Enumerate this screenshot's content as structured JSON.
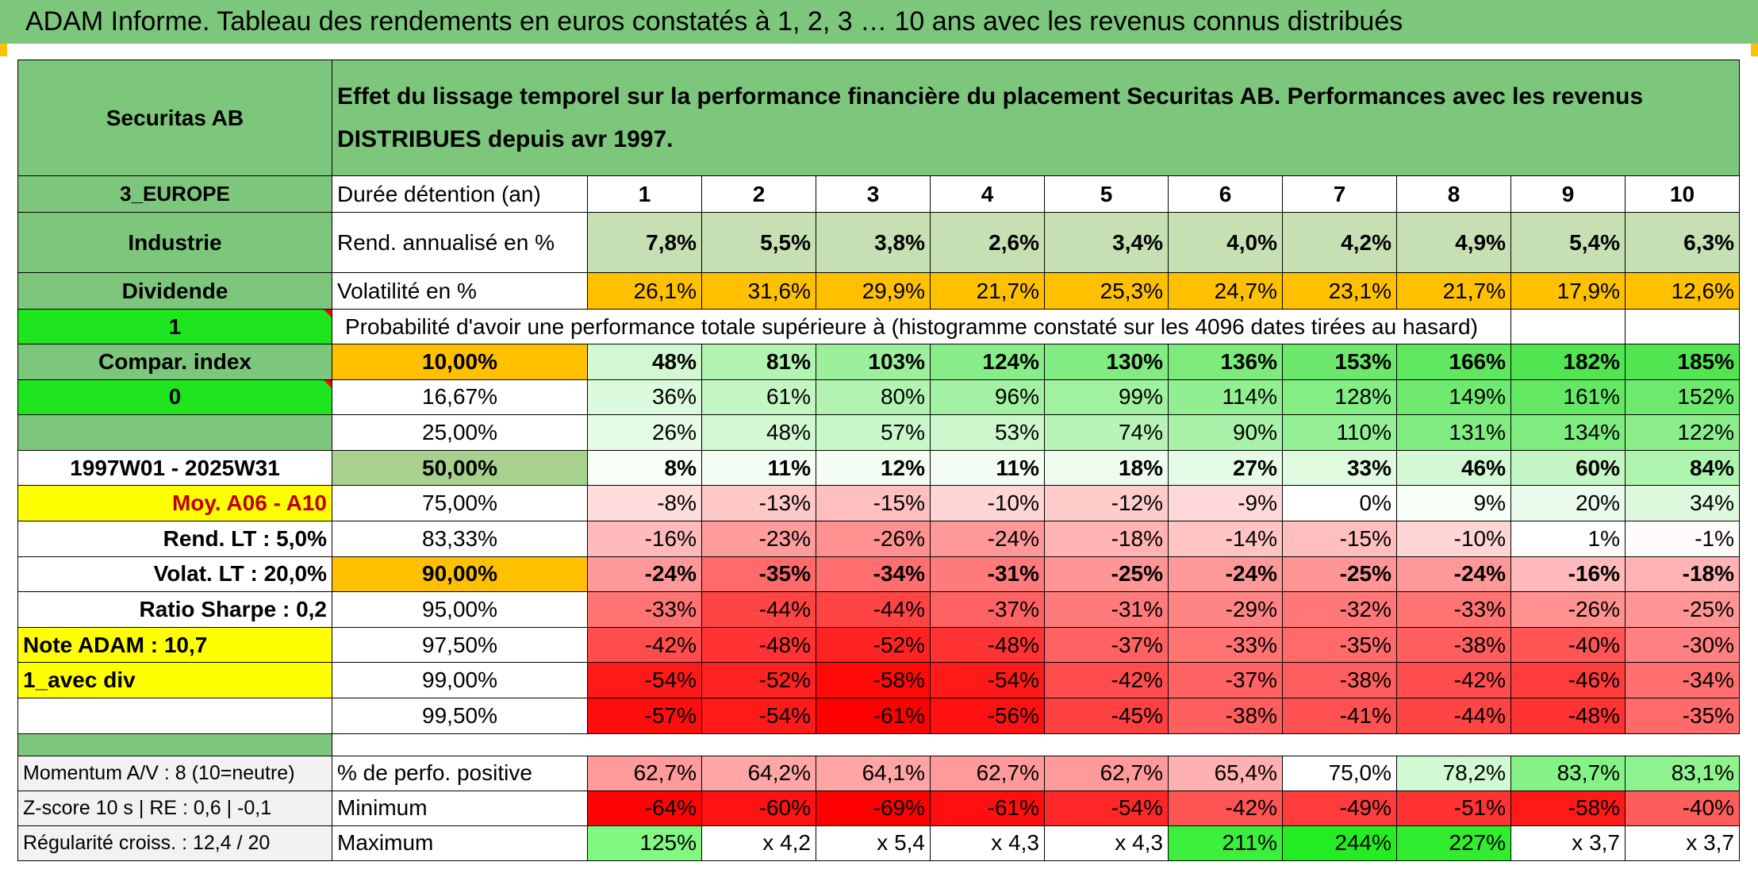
{
  "title": "ADAM Informe. Tableau des rendements en euros constatés à 1, 2, 3 … 10 ans avec les revenus connus distribués",
  "left_panel": {
    "name": "Securitas AB",
    "region": "3_EUROPE",
    "sector": "Industrie",
    "dividend_label": "Dividende",
    "value_1": "1",
    "compar_index": "Compar. index",
    "value_0": "0",
    "period": "1997W01 - 2025W31",
    "moy": "Moy. A06 - A10",
    "rend_lt": "Rend. LT :    5,0%",
    "volat_lt": "Volat. LT :    20,0%",
    "sharpe": "Ratio Sharpe :    0,2",
    "note": "Note ADAM : 10,7",
    "avec_div": "1_avec div",
    "momentum": "Momentum A/V : 8 (10=neutre)",
    "zscore": "Z-score 10 s | RE : 0,6 | -0,1",
    "regularite": "Régularité croiss. : 12,4 / 20"
  },
  "header_text": "Effet du lissage temporel sur la performance financière du placement Securitas AB. Performances avec les revenus DISTRIBUES depuis avr 1997.",
  "duration_label": "Durée détention (an)",
  "years": [
    "1",
    "2",
    "3",
    "4",
    "5",
    "6",
    "7",
    "8",
    "9",
    "10"
  ],
  "rend_label": "Rend. annualisé en %",
  "rend_values": [
    "7,8%",
    "5,5%",
    "3,8%",
    "2,6%",
    "3,4%",
    "4,0%",
    "4,2%",
    "4,9%",
    "5,4%",
    "6,3%"
  ],
  "vol_label": "Volatilité en %",
  "vol_values": [
    "26,1%",
    "31,6%",
    "29,9%",
    "21,7%",
    "25,3%",
    "24,7%",
    "23,1%",
    "21,7%",
    "17,9%",
    "12,6%"
  ],
  "prob_header": "Probabilité d'avoir une performance totale supérieure à (histogramme constaté sur les 4096 dates tirées au hasard)",
  "prob_rows": [
    {
      "threshold": "10,00%",
      "values": [
        "48%",
        "81%",
        "103%",
        "124%",
        "130%",
        "136%",
        "153%",
        "166%",
        "182%",
        "185%"
      ]
    },
    {
      "threshold": "16,67%",
      "values": [
        "36%",
        "61%",
        "80%",
        "96%",
        "99%",
        "114%",
        "128%",
        "149%",
        "161%",
        "152%"
      ]
    },
    {
      "threshold": "25,00%",
      "values": [
        "26%",
        "48%",
        "57%",
        "53%",
        "74%",
        "90%",
        "110%",
        "131%",
        "134%",
        "122%"
      ]
    },
    {
      "threshold": "50,00%",
      "values": [
        "8%",
        "11%",
        "12%",
        "11%",
        "18%",
        "27%",
        "33%",
        "46%",
        "60%",
        "84%"
      ]
    },
    {
      "threshold": "75,00%",
      "values": [
        "-8%",
        "-13%",
        "-15%",
        "-10%",
        "-12%",
        "-9%",
        "0%",
        "9%",
        "20%",
        "34%"
      ]
    },
    {
      "threshold": "83,33%",
      "values": [
        "-16%",
        "-23%",
        "-26%",
        "-24%",
        "-18%",
        "-14%",
        "-15%",
        "-10%",
        "1%",
        "-1%"
      ]
    },
    {
      "threshold": "90,00%",
      "values": [
        "-24%",
        "-35%",
        "-34%",
        "-31%",
        "-25%",
        "-24%",
        "-25%",
        "-24%",
        "-16%",
        "-18%"
      ]
    },
    {
      "threshold": "95,00%",
      "values": [
        "-33%",
        "-44%",
        "-44%",
        "-37%",
        "-31%",
        "-29%",
        "-32%",
        "-33%",
        "-26%",
        "-25%"
      ]
    },
    {
      "threshold": "97,50%",
      "values": [
        "-42%",
        "-48%",
        "-52%",
        "-48%",
        "-37%",
        "-33%",
        "-35%",
        "-38%",
        "-40%",
        "-30%"
      ]
    },
    {
      "threshold": "99,00%",
      "values": [
        "-54%",
        "-52%",
        "-58%",
        "-54%",
        "-42%",
        "-37%",
        "-38%",
        "-42%",
        "-46%",
        "-34%"
      ]
    },
    {
      "threshold": "99,50%",
      "values": [
        "-57%",
        "-54%",
        "-61%",
        "-56%",
        "-45%",
        "-38%",
        "-41%",
        "-44%",
        "-48%",
        "-35%"
      ]
    }
  ],
  "pos_label": "% de perfo. positive",
  "pos_values": [
    "62,7%",
    "64,2%",
    "64,1%",
    "62,7%",
    "62,7%",
    "65,4%",
    "75,0%",
    "78,2%",
    "83,7%",
    "83,1%"
  ],
  "min_label": "Minimum",
  "min_values": [
    "-64%",
    "-60%",
    "-69%",
    "-61%",
    "-54%",
    "-42%",
    "-49%",
    "-51%",
    "-58%",
    "-40%"
  ],
  "max_label": "Maximum",
  "max_values": [
    "125%",
    "x 4,2",
    "x 5,4",
    "x 4,3",
    "x 4,3",
    "211%",
    "244%",
    "227%",
    "x 3,7",
    "x 3,7"
  ],
  "colors": {
    "header_green": "#7dc77c",
    "light_green": "#c6e0b4",
    "bright_green": "#1fe51f",
    "yellow": "#ffff00",
    "orange": "#ffc000",
    "red_text": "#d32020"
  }
}
